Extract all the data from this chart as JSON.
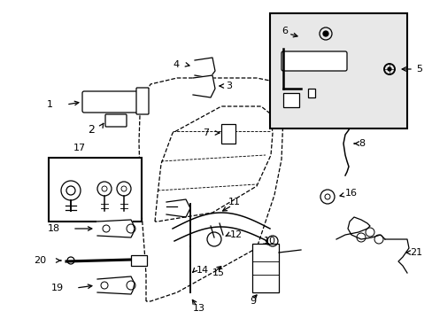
{
  "background_color": "#ffffff",
  "fig_width": 4.89,
  "fig_height": 3.6,
  "dpi": 100,
  "label_fontsize": 8,
  "label_color": "#000000",
  "line_color": "#000000",
  "line_width": 0.9
}
